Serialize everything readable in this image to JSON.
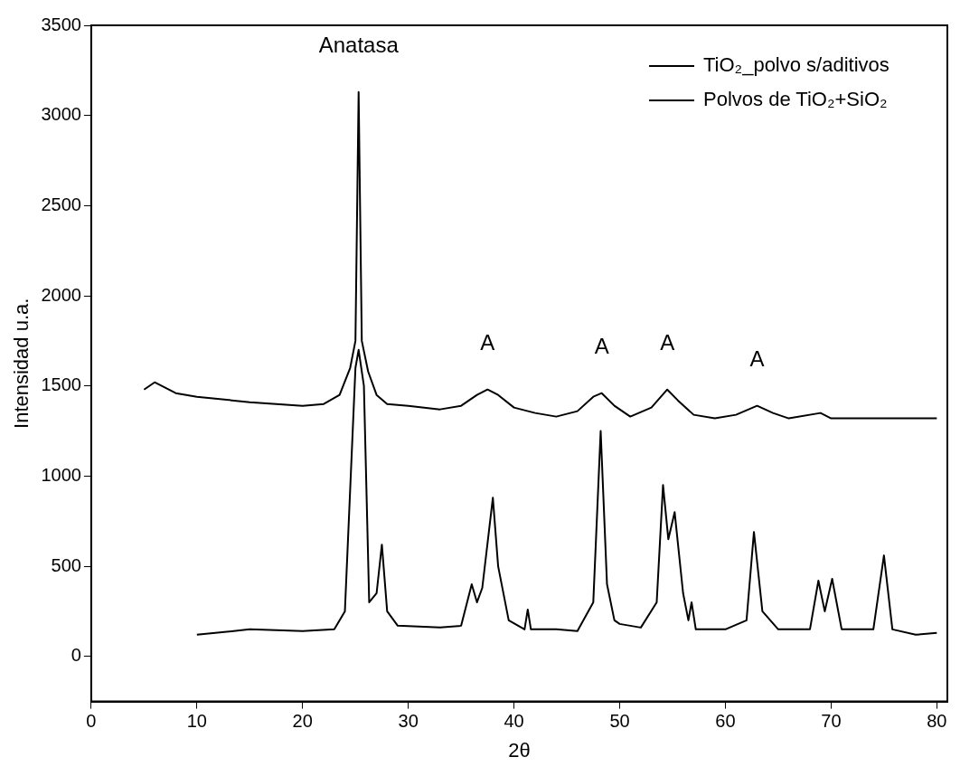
{
  "chart_data": {
    "type": "line",
    "xlabel": "2θ",
    "ylabel": "Intensidad u.a.",
    "xlim": [
      0,
      81
    ],
    "xticks": [
      0,
      10,
      20,
      30,
      40,
      50,
      60,
      70,
      80
    ],
    "ylim": [
      -250,
      3500
    ],
    "yticks": [
      0,
      500,
      1000,
      1500,
      2000,
      2500,
      3000,
      3500
    ],
    "grid": false,
    "legend": "top right",
    "marker": "none",
    "line_style": "solid",
    "annotations": [
      {
        "text": "Anatasa",
        "x": 25.3,
        "y": 3130
      },
      {
        "text": "A",
        "x": 37.5,
        "y": 1480
      },
      {
        "text": "A",
        "x": 48.3,
        "y": 1460
      },
      {
        "text": "A",
        "x": 54.5,
        "y": 1480
      },
      {
        "text": "A",
        "x": 63,
        "y": 1390
      }
    ],
    "series": [
      {
        "name": "TiO₂_polvo s/aditivos",
        "color": "#000000",
        "x": [
          5,
          6,
          8,
          10,
          15,
          20,
          22,
          23.5,
          24.5,
          25,
          25.3,
          25.6,
          26.2,
          27,
          28,
          30,
          33,
          35,
          36.5,
          37.5,
          38.5,
          40,
          42,
          44,
          46,
          47.5,
          48.3,
          49.5,
          51,
          53,
          54.5,
          55.5,
          57,
          59,
          61,
          63,
          64.5,
          66,
          69,
          70,
          75,
          80
        ],
        "values": [
          1480,
          1520,
          1460,
          1440,
          1410,
          1390,
          1400,
          1450,
          1600,
          1750,
          3130,
          1750,
          1580,
          1450,
          1400,
          1390,
          1370,
          1390,
          1450,
          1480,
          1450,
          1380,
          1350,
          1330,
          1360,
          1440,
          1460,
          1390,
          1330,
          1380,
          1480,
          1420,
          1340,
          1320,
          1340,
          1390,
          1350,
          1320,
          1350,
          1320,
          1320,
          1320
        ]
      },
      {
        "name": "Polvos de TiO₂+SiO₂",
        "color": "#000000",
        "x": [
          10,
          15,
          20,
          23,
          24,
          25,
          25.3,
          25.8,
          26.3,
          27,
          27.5,
          28,
          29,
          33,
          35,
          36,
          36.5,
          37,
          38,
          38.5,
          39.5,
          41,
          41.3,
          41.6,
          44,
          46,
          47.5,
          48.2,
          48.8,
          49.5,
          50,
          52,
          53.5,
          54.1,
          54.6,
          55.2,
          56,
          56.5,
          56.8,
          57.2,
          60,
          62,
          62.7,
          63.5,
          65,
          68,
          68.8,
          69.4,
          70.1,
          71,
          74,
          75,
          75.8,
          78,
          80
        ],
        "values": [
          120,
          150,
          140,
          150,
          250,
          1600,
          1700,
          1500,
          300,
          350,
          620,
          250,
          170,
          160,
          170,
          400,
          300,
          380,
          880,
          500,
          200,
          150,
          260,
          150,
          150,
          140,
          300,
          1250,
          400,
          200,
          180,
          160,
          300,
          950,
          650,
          800,
          350,
          200,
          300,
          150,
          150,
          200,
          690,
          250,
          150,
          150,
          420,
          250,
          430,
          150,
          150,
          560,
          150,
          120,
          130
        ]
      }
    ]
  }
}
